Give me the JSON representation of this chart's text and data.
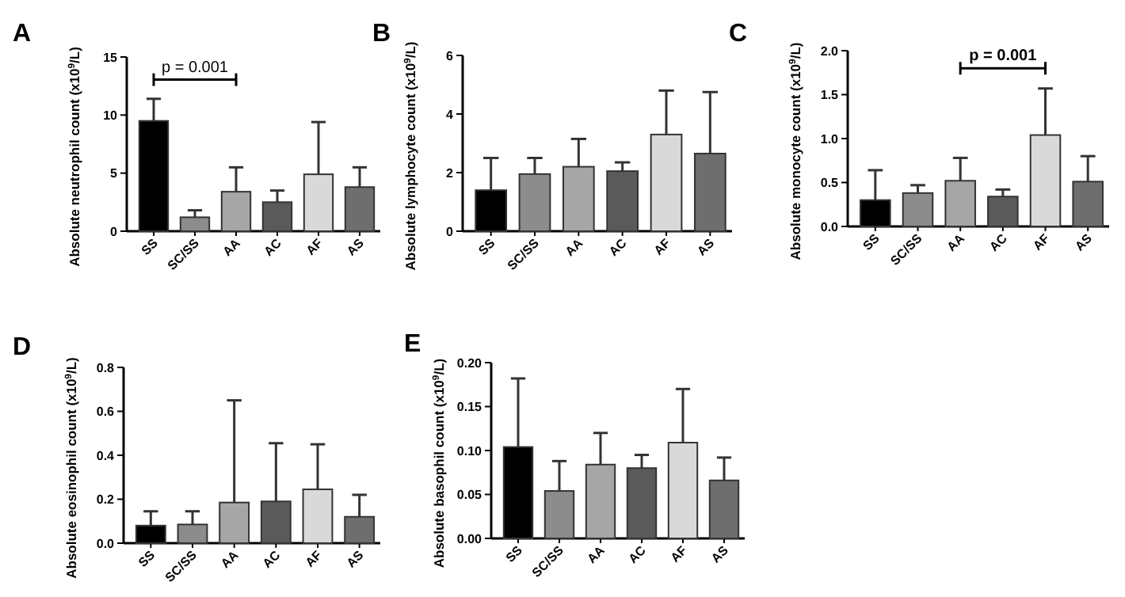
{
  "chart_data": [
    {
      "type": "bar",
      "title": "A",
      "ylabel": "Absolute neutrophil count (x10$^{9}$/L)",
      "categories": [
        "SS",
        "SC/SS",
        "AA",
        "AC",
        "AF",
        "AS"
      ],
      "values": [
        9.5,
        1.2,
        3.4,
        2.5,
        4.9,
        3.8
      ],
      "errors": [
        [
          9.5,
          11.4
        ],
        [
          1.2,
          1.8
        ],
        [
          3.4,
          5.5
        ],
        [
          2.5,
          3.5
        ],
        [
          4.9,
          9.4
        ],
        [
          3.8,
          5.5
        ]
      ],
      "colors": [
        "#000000",
        "#8c8c8c",
        "#a6a6a6",
        "#5a5a5a",
        "#d9d9d9",
        "#6e6e6e"
      ],
      "ylim": [
        0,
        15
      ],
      "yticks": [
        0,
        5,
        10,
        15
      ],
      "annotations": [
        "p = 0.001"
      ]
    },
    {
      "type": "bar",
      "title": "B",
      "ylabel": "Absolute lymphocyte count (x10$^{9}$/L)",
      "categories": [
        "SS",
        "SC/SS",
        "AA",
        "AC",
        "AF",
        "AS"
      ],
      "values": [
        1.4,
        1.95,
        2.2,
        2.05,
        3.3,
        2.65
      ],
      "errors": [
        [
          1.4,
          2.5
        ],
        [
          1.95,
          2.5
        ],
        [
          2.2,
          3.15
        ],
        [
          2.05,
          2.35
        ],
        [
          3.3,
          4.8
        ],
        [
          2.65,
          4.75
        ]
      ],
      "colors": [
        "#000000",
        "#8c8c8c",
        "#a6a6a6",
        "#5a5a5a",
        "#d9d9d9",
        "#6e6e6e"
      ],
      "ylim": [
        0,
        6
      ],
      "yticks": [
        0,
        2,
        4,
        6
      ]
    },
    {
      "type": "bar",
      "title": "C",
      "ylabel": "Absolute monocyte count (x10$^{9}$/L)",
      "categories": [
        "SS",
        "SC/SS",
        "AA",
        "AC",
        "AF",
        "AS"
      ],
      "values": [
        0.3,
        0.38,
        0.52,
        0.34,
        1.04,
        0.51
      ],
      "errors": [
        [
          0.3,
          0.64
        ],
        [
          0.38,
          0.47
        ],
        [
          0.52,
          0.78
        ],
        [
          0.34,
          0.42
        ],
        [
          1.04,
          1.57
        ],
        [
          0.51,
          0.8
        ]
      ],
      "colors": [
        "#000000",
        "#8c8c8c",
        "#a6a6a6",
        "#5a5a5a",
        "#d9d9d9",
        "#6e6e6e"
      ],
      "ylim": [
        0,
        2
      ],
      "yticks": [
        {
          "value": 0,
          "label": "0.0"
        },
        0.5,
        {
          "value": 1,
          "label": "1.0"
        },
        1.5,
        {
          "value": 2,
          "label": "2.0"
        }
      ],
      "annotations": [
        "p = 0.001"
      ]
    },
    {
      "type": "bar",
      "title": "D",
      "ylabel": "Absolute eosinophil count (x10$^{9}$/L)",
      "categories": [
        "SS",
        "SC/SS",
        "AA",
        "AC",
        "AF",
        "AS"
      ],
      "values": [
        0.08,
        0.085,
        0.185,
        0.19,
        0.245,
        0.12
      ],
      "errors": [
        [
          0.08,
          0.145
        ],
        [
          0.085,
          0.145
        ],
        [
          0.185,
          0.65
        ],
        [
          0.19,
          0.455
        ],
        [
          0.245,
          0.45
        ],
        [
          0.12,
          0.22
        ]
      ],
      "colors": [
        "#000000",
        "#8c8c8c",
        "#a6a6a6",
        "#5a5a5a",
        "#d9d9d9",
        "#6e6e6e"
      ],
      "ylim": [
        0,
        0.8
      ],
      "yticks": [
        {
          "value": 0,
          "label": "0.0"
        },
        0.2,
        0.4,
        0.6,
        0.8
      ]
    },
    {
      "type": "bar",
      "title": "E",
      "ylabel": "Absolute basophil count (x10$^{9}$/L)",
      "categories": [
        "SS",
        "SC/SS",
        "AA",
        "AC",
        "AF",
        "AS"
      ],
      "values": [
        0.104,
        0.054,
        0.084,
        0.08,
        0.109,
        0.066
      ],
      "errors": [
        [
          0.104,
          0.182
        ],
        [
          0.054,
          0.088
        ],
        [
          0.084,
          0.12
        ],
        [
          0.08,
          0.095
        ],
        [
          0.109,
          0.17
        ],
        [
          0.066,
          0.092
        ]
      ],
      "colors": [
        "#000000",
        "#8c8c8c",
        "#a6a6a6",
        "#5a5a5a",
        "#d9d9d9",
        "#6e6e6e"
      ],
      "ylim": [
        0,
        0.2
      ],
      "yticks": [
        {
          "value": 0,
          "label": "0.00"
        },
        0.05,
        {
          "value": 0.1,
          "label": "0.10"
        },
        0.15,
        {
          "value": 0.2,
          "label": "0.20"
        }
      ]
    }
  ]
}
